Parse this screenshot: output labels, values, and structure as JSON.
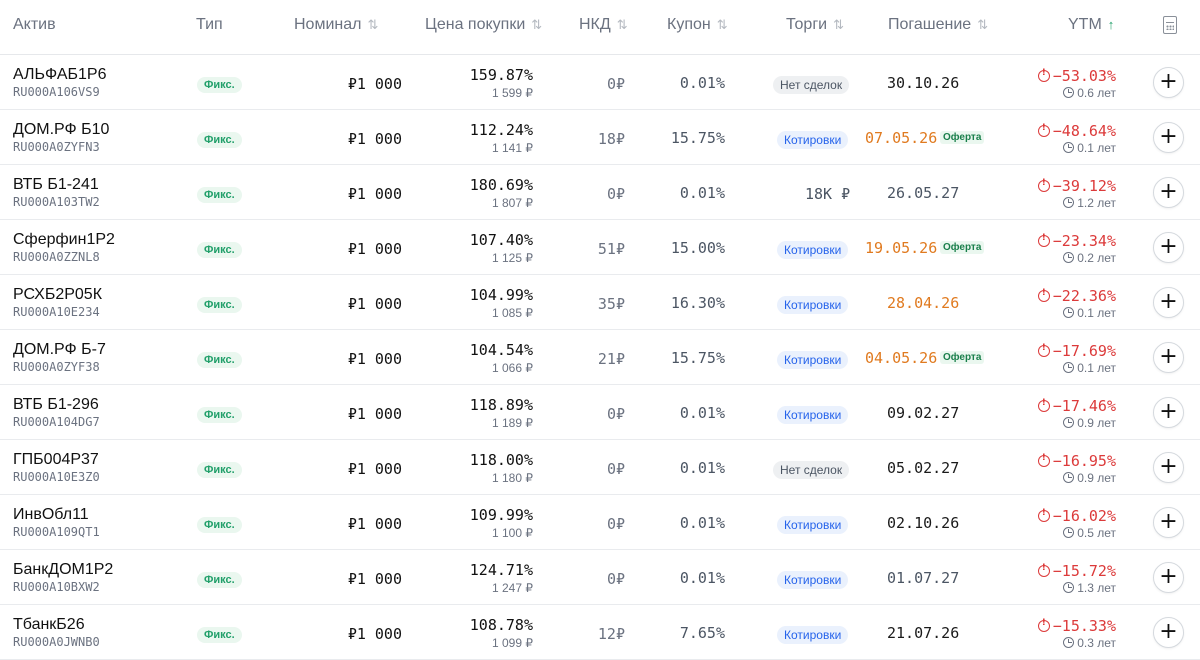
{
  "header": {
    "asset": "Актив",
    "type": "Тип",
    "nominal": "Номинал",
    "price": "Цена покупки",
    "nkd": "НКД",
    "coupon": "Купон",
    "trades": "Торги",
    "maturity": "Погашение",
    "ytm": "YTM",
    "sort_icon": "⇅",
    "sort_up_icon": "↑"
  },
  "colors": {
    "accent_green": "#22a06b",
    "negative_red": "#dc3a3a",
    "quote_blue": "#2563eb",
    "offer_orange": "#e07a1f",
    "neutral_date": "#1a1a1a",
    "muted_date": "#4b5563"
  },
  "rows": [
    {
      "name": "АЛЬФАБ1Р6",
      "isin": "RU000A106VS9",
      "type": "Фикс.",
      "nominal": "₽1 000",
      "price": "159.87%",
      "price_rub": "1 599 ₽",
      "nkd": "0₽",
      "coupon": "0.01%",
      "trade_kind": "none",
      "trade": "Нет сделок",
      "date": "30.10.26",
      "date_kind": "black",
      "offer": "",
      "ytm": "−53.03%",
      "duration": "0.6 лет"
    },
    {
      "name": "ДОМ.РФ Б10",
      "isin": "RU000A0ZYFN3",
      "type": "Фикс.",
      "nominal": "₽1 000",
      "price": "112.24%",
      "price_rub": "1 141 ₽",
      "nkd": "18₽",
      "coupon": "15.75%",
      "trade_kind": "quotes",
      "trade": "Котировки",
      "date": "07.05.26",
      "date_kind": "orange",
      "offer": "Оферта",
      "ytm": "−48.64%",
      "duration": "0.1 лет"
    },
    {
      "name": "ВТБ Б1-241",
      "isin": "RU000A103TW2",
      "type": "Фикс.",
      "nominal": "₽1 000",
      "price": "180.69%",
      "price_rub": "1 807 ₽",
      "nkd": "0₽",
      "coupon": "0.01%",
      "trade_kind": "text",
      "trade": "18K ₽",
      "date": "26.05.27",
      "date_kind": "gray",
      "offer": "",
      "ytm": "−39.12%",
      "duration": "1.2 лет"
    },
    {
      "name": "Сферфин1Р2",
      "isin": "RU000A0ZZNL8",
      "type": "Фикс.",
      "nominal": "₽1 000",
      "price": "107.40%",
      "price_rub": "1 125 ₽",
      "nkd": "51₽",
      "coupon": "15.00%",
      "trade_kind": "quotes",
      "trade": "Котировки",
      "date": "19.05.26",
      "date_kind": "orange",
      "offer": "Оферта",
      "ytm": "−23.34%",
      "duration": "0.2 лет"
    },
    {
      "name": "РСХБ2Р05К",
      "isin": "RU000A10E234",
      "type": "Фикс.",
      "nominal": "₽1 000",
      "price": "104.99%",
      "price_rub": "1 085 ₽",
      "nkd": "35₽",
      "coupon": "16.30%",
      "trade_kind": "quotes",
      "trade": "Котировки",
      "date": "28.04.26",
      "date_kind": "orange-c",
      "offer": "",
      "ytm": "−22.36%",
      "duration": "0.1 лет"
    },
    {
      "name": "ДОМ.РФ Б-7",
      "isin": "RU000A0ZYF38",
      "type": "Фикс.",
      "nominal": "₽1 000",
      "price": "104.54%",
      "price_rub": "1 066 ₽",
      "nkd": "21₽",
      "coupon": "15.75%",
      "trade_kind": "quotes",
      "trade": "Котировки",
      "date": "04.05.26",
      "date_kind": "orange",
      "offer": "Оферта",
      "ytm": "−17.69%",
      "duration": "0.1 лет"
    },
    {
      "name": "ВТБ Б1-296",
      "isin": "RU000A104DG7",
      "type": "Фикс.",
      "nominal": "₽1 000",
      "price": "118.89%",
      "price_rub": "1 189 ₽",
      "nkd": "0₽",
      "coupon": "0.01%",
      "trade_kind": "quotes",
      "trade": "Котировки",
      "date": "09.02.27",
      "date_kind": "black",
      "offer": "",
      "ytm": "−17.46%",
      "duration": "0.9 лет"
    },
    {
      "name": "ГПБ004Р37",
      "isin": "RU000A10E3Z0",
      "type": "Фикс.",
      "nominal": "₽1 000",
      "price": "118.00%",
      "price_rub": "1 180 ₽",
      "nkd": "0₽",
      "coupon": "0.01%",
      "trade_kind": "none",
      "trade": "Нет сделок",
      "date": "05.02.27",
      "date_kind": "black",
      "offer": "",
      "ytm": "−16.95%",
      "duration": "0.9 лет"
    },
    {
      "name": "ИнвОбл11",
      "isin": "RU000A109QT1",
      "type": "Фикс.",
      "nominal": "₽1 000",
      "price": "109.99%",
      "price_rub": "1 100 ₽",
      "nkd": "0₽",
      "coupon": "0.01%",
      "trade_kind": "quotes",
      "trade": "Котировки",
      "date": "02.10.26",
      "date_kind": "black",
      "offer": "",
      "ytm": "−16.02%",
      "duration": "0.5 лет"
    },
    {
      "name": "БанкДОМ1Р2",
      "isin": "RU000A10BXW2",
      "type": "Фикс.",
      "nominal": "₽1 000",
      "price": "124.71%",
      "price_rub": "1 247 ₽",
      "nkd": "0₽",
      "coupon": "0.01%",
      "trade_kind": "quotes",
      "trade": "Котировки",
      "date": "01.07.27",
      "date_kind": "gray",
      "offer": "",
      "ytm": "−15.72%",
      "duration": "1.3 лет"
    },
    {
      "name": "ТбанкБ26",
      "isin": "RU000A0JWNB0",
      "type": "Фикс.",
      "nominal": "₽1 000",
      "price": "108.78%",
      "price_rub": "1 099 ₽",
      "nkd": "12₽",
      "coupon": "7.65%",
      "trade_kind": "quotes",
      "trade": "Котировки",
      "date": "21.07.26",
      "date_kind": "black",
      "offer": "",
      "ytm": "−15.33%",
      "duration": "0.3 лет"
    }
  ]
}
